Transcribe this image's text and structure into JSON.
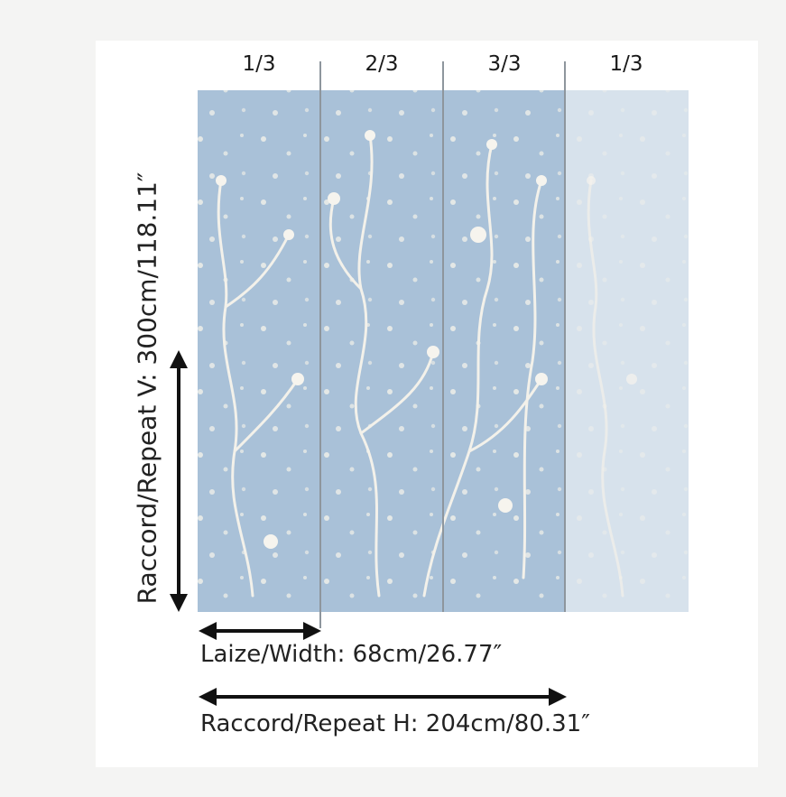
{
  "panels": [
    {
      "label": "1/3"
    },
    {
      "label": "2/3"
    },
    {
      "label": "3/3"
    },
    {
      "label": "1/3"
    }
  ],
  "dimensions": {
    "vertical_repeat": "Raccord/Repeat V: 300cm/118.11″",
    "width": "Laize/Width: 68cm/26.77″",
    "horizontal_repeat": "Raccord/Repeat H: 204cm/80.31″"
  },
  "colors": {
    "wallpaper_blue": "#a9c1d8",
    "wallpaper_faded": "#d7e2ec",
    "motif": "#f3f1ea",
    "divider": "#8e969d",
    "arrow": "#111111"
  }
}
